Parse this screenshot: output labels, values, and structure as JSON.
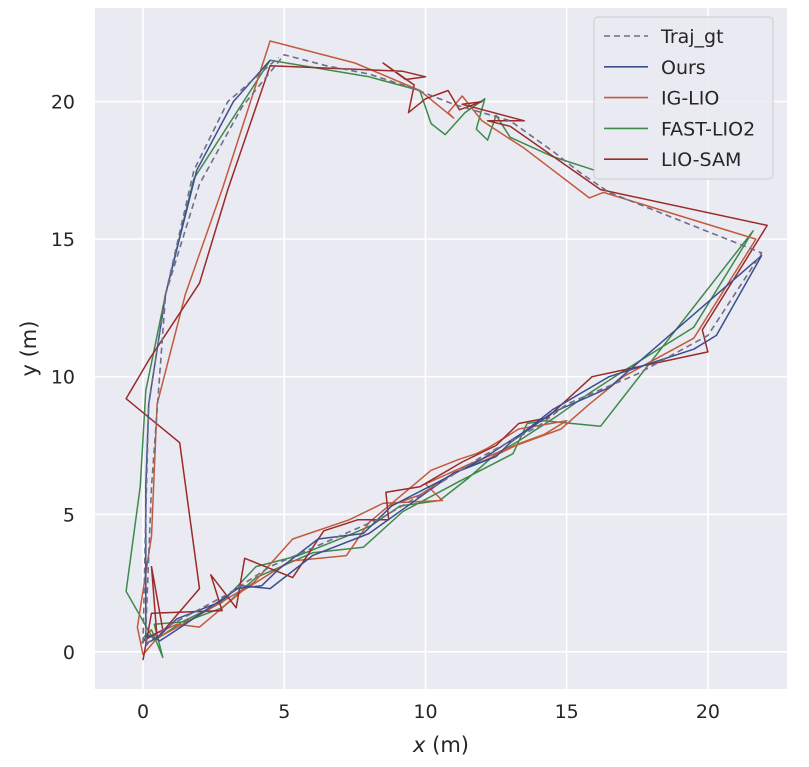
{
  "chart_data": {
    "type": "line",
    "xlabel_var": "x",
    "xlabel_unit": " (m)",
    "ylabel": "y (m)",
    "xlim": [
      -1.7,
      22.8
    ],
    "ylim": [
      -1.35,
      23.4
    ],
    "xticks": [
      0,
      5,
      10,
      15,
      20
    ],
    "yticks": [
      0,
      5,
      10,
      15,
      20
    ],
    "grid": true,
    "legend_position": "top-right",
    "colors": {
      "background": "#eaeaf2",
      "grid": "#ffffff",
      "traj_gt": "#6e6e88",
      "ours": "#3b4f8f",
      "ig_lio": "#c25a3c",
      "fast_lio2": "#3e8a4a",
      "lio_sam": "#9b2a28"
    },
    "series": [
      {
        "name": "Traj_gt",
        "style": "dashed",
        "color": "#6e6e88",
        "x": [
          0,
          0.1,
          0.2,
          0.8,
          2.0,
          3.5,
          5.0,
          6.5,
          8.0,
          9.5,
          11.0,
          12.0,
          13.0,
          14.5,
          15.5,
          16.5,
          21.9,
          20.0,
          17.5,
          15.0,
          14.0,
          12.0,
          10.0,
          8.5,
          6.5,
          4.5,
          3.0,
          1.0,
          0.3,
          0.1,
          0.1,
          0.3,
          0.8,
          1.8,
          3.0,
          4.8
        ],
        "y": [
          0.3,
          5.0,
          9.0,
          13.0,
          17.0,
          19.8,
          21.7,
          21.3,
          21.0,
          20.5,
          19.9,
          19.6,
          19.3,
          18.2,
          17.4,
          16.7,
          14.5,
          11.5,
          10.1,
          9.0,
          8.2,
          7.1,
          5.8,
          4.9,
          4.0,
          3.1,
          2.1,
          1.0,
          0.5,
          0.2,
          0.8,
          6.0,
          13.0,
          17.5,
          20.0,
          21.6
        ]
      },
      {
        "name": "Ours",
        "style": "solid",
        "color": "#3b4f8f",
        "x": [
          0,
          0.2,
          0.6,
          1.2,
          2.2,
          3.5,
          4.5,
          6.0,
          8.0,
          9.5,
          11.0,
          12.5,
          13.0,
          14.5,
          16.5,
          21.9,
          20.3,
          19.5,
          16.5,
          14.5,
          13.5,
          12.0,
          10.5,
          8.8,
          7.8,
          6.2,
          4.8,
          4.2,
          3.3,
          2.7,
          1.2,
          0.6,
          0.3,
          0.1,
          0.1,
          0.2,
          0.8,
          1.9,
          3.2,
          4.5
        ],
        "y": [
          0.4,
          0.6,
          0.4,
          0.8,
          1.5,
          2.4,
          2.3,
          3.5,
          4.3,
          5.4,
          6.5,
          7.1,
          7.6,
          8.7,
          9.6,
          14.4,
          11.5,
          11.0,
          10.0,
          8.8,
          8.0,
          7.0,
          6.2,
          5.3,
          4.3,
          4.1,
          3.0,
          2.4,
          2.3,
          1.8,
          1.2,
          0.6,
          0.4,
          0.3,
          6.0,
          9.0,
          13.0,
          17.5,
          20.0,
          21.5
        ]
      },
      {
        "name": "IG-LIO",
        "style": "solid",
        "color": "#c25a3c",
        "x": [
          -0.1,
          0.3,
          1.2,
          2.0,
          3.5,
          5.2,
          7.2,
          8.0,
          10.2,
          11.2,
          11.8,
          12.2,
          13.3,
          15.0,
          14.2,
          13.4,
          11.5,
          10.0,
          10.6,
          8.5,
          7.3,
          5.3,
          3.9,
          2.6,
          1.4,
          0.5,
          0.0,
          -0.2,
          0.3,
          0.5,
          1.5,
          2.8,
          4.5,
          7.5,
          9.8,
          11.0,
          10.8,
          11.3,
          12.0,
          13.5,
          15.8,
          16.3,
          21.7,
          19.5,
          17.0,
          15.8,
          14.8,
          13.2,
          12.2,
          11.0,
          10.7,
          9.8,
          8.7
        ],
        "y": [
          0.3,
          0.6,
          1.0,
          0.9,
          2.2,
          3.3,
          3.5,
          4.7,
          6.6,
          7.0,
          7.2,
          7.4,
          8.1,
          8.4,
          7.9,
          7.6,
          6.8,
          6.1,
          5.5,
          5.4,
          4.8,
          4.1,
          2.5,
          1.7,
          1.0,
          0.5,
          -0.1,
          0.9,
          4.2,
          9.0,
          13.0,
          16.8,
          22.2,
          21.4,
          20.4,
          19.4,
          19.6,
          20.2,
          19.3,
          18.3,
          16.5,
          16.7,
          15.0,
          11.4,
          10.0,
          9.0,
          8.1,
          7.5,
          7.0,
          6.5,
          6.3,
          5.7,
          5.3
        ]
      },
      {
        "name": "FAST-LIO2",
        "style": "solid",
        "color": "#3e8a4a",
        "x": [
          0.0,
          0.3,
          0.7,
          0.4,
          1.5,
          2.8,
          4.0,
          6.0,
          7.8,
          9.2,
          11.2,
          13.1,
          13.6,
          14.2,
          16.2,
          21.6,
          19.5,
          17.0,
          15.8,
          14.7,
          13.2,
          12.5,
          11.5,
          10.5,
          9.1,
          8.1,
          7.2,
          5.5,
          4.0,
          2.8,
          1.4,
          0.4,
          -0.6,
          -0.1,
          0.1,
          0.8,
          1.8,
          4.5,
          8.0,
          9.8,
          10.2,
          10.7,
          11.4,
          12.1,
          11.8,
          12.2,
          12.5,
          13.0,
          14.5,
          16.0
        ],
        "y": [
          0.5,
          0.8,
          -0.2,
          1.0,
          1.1,
          1.6,
          2.7,
          3.6,
          3.8,
          5.1,
          6.2,
          7.2,
          8.3,
          8.4,
          8.2,
          15.3,
          11.8,
          10.2,
          9.4,
          8.6,
          7.6,
          7.2,
          6.3,
          5.5,
          5.3,
          4.6,
          4.2,
          3.5,
          3.1,
          1.8,
          1.1,
          0.4,
          2.2,
          6.0,
          9.5,
          13.0,
          17.2,
          21.5,
          20.9,
          20.4,
          19.2,
          18.8,
          19.6,
          20.1,
          19.0,
          18.6,
          19.5,
          18.7,
          18.0,
          17.5
        ]
      },
      {
        "name": "LIO-SAM",
        "style": "solid",
        "color": "#9b2a28",
        "x": [
          0.0,
          0.3,
          2.8,
          2.4,
          3.3,
          3.6,
          5.3,
          6.4,
          7.6,
          8.7,
          8.6,
          9.8,
          11.3,
          12.5,
          13.3,
          14.3,
          15.9,
          20.0,
          19.8,
          22.1,
          16.2,
          13.0,
          12.2,
          13.5,
          11.3,
          12.0,
          11.2,
          10.8,
          10.0,
          9.4,
          9.6,
          8.5,
          9.3,
          10.0,
          9.2,
          4.5,
          3.0,
          2.0,
          0.2,
          -0.6,
          1.3,
          2.0,
          0.5,
          0.3,
          0.7,
          0.0
        ],
        "y": [
          -0.3,
          1.4,
          1.5,
          2.8,
          1.6,
          3.4,
          2.7,
          4.4,
          4.8,
          4.8,
          5.8,
          6.0,
          6.9,
          7.5,
          8.3,
          8.5,
          10.0,
          10.9,
          11.7,
          15.5,
          16.8,
          19.1,
          19.3,
          19.3,
          19.9,
          20.0,
          19.7,
          20.4,
          20.1,
          19.6,
          20.6,
          21.4,
          20.8,
          20.9,
          21.1,
          21.3,
          16.8,
          13.4,
          10.6,
          9.2,
          7.6,
          2.3,
          0.5,
          3.1,
          0.8,
          0.4
        ]
      }
    ]
  }
}
